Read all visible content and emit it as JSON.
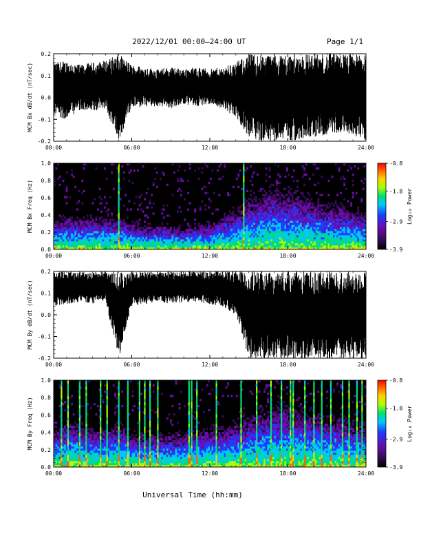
{
  "header": {
    "title": "2022/12/01  00:00–24:00 UT",
    "page": "Page 1/1"
  },
  "x_axis": {
    "title": "Universal Time (hh:mm)",
    "tick_labels": [
      "00:00",
      "06:00",
      "12:00",
      "18:00",
      "24:00"
    ],
    "range_hours": [
      0,
      24
    ]
  },
  "colors": {
    "plot_background": "#000000",
    "trace": "#000000",
    "colorscale": [
      "#000000",
      "#3b0a5c",
      "#6a0dad",
      "#1e3cff",
      "#00c8ff",
      "#00e070",
      "#aaff00",
      "#ffd000",
      "#ff6000",
      "#ff0000"
    ]
  },
  "chart_data": [
    {
      "type": "line",
      "panel": "bx-timeseries",
      "ylabel": "MCM Bx dB/dt (nT/sec)",
      "ylim": [
        -0.2,
        0.2
      ],
      "ytick_labels": [
        "0.2",
        "0.1",
        "0.0",
        "-0.1",
        "-0.2"
      ],
      "xlim": [
        0,
        24
      ],
      "series": [
        {
          "x": [
            0,
            1,
            2,
            3,
            4,
            5,
            6,
            7,
            8,
            9,
            10,
            11,
            12,
            13,
            14,
            15,
            16,
            17,
            18,
            19,
            20,
            21,
            22,
            23,
            24
          ],
          "upper": [
            0.16,
            0.17,
            0.15,
            0.16,
            0.17,
            0.2,
            0.15,
            0.14,
            0.13,
            0.14,
            0.13,
            0.14,
            0.13,
            0.14,
            0.16,
            0.2,
            0.2,
            0.2,
            0.2,
            0.2,
            0.2,
            0.2,
            0.2,
            0.2,
            0.2
          ],
          "lower": [
            -0.08,
            -0.1,
            -0.06,
            -0.07,
            -0.05,
            -0.2,
            -0.05,
            -0.04,
            -0.04,
            -0.05,
            -0.03,
            -0.04,
            -0.03,
            -0.05,
            -0.09,
            -0.18,
            -0.2,
            -0.2,
            -0.2,
            -0.19,
            -0.18,
            -0.17,
            -0.16,
            -0.17,
            -0.2
          ]
        }
      ]
    },
    {
      "type": "heatmap",
      "panel": "bx-spectrogram",
      "ylabel": "MCM Bx Freq (Hz)",
      "ylim": [
        0,
        1
      ],
      "ytick_labels": [
        "1.0",
        "0.8",
        "0.6",
        "0.4",
        "0.2",
        "0.0"
      ],
      "xlim": [
        0,
        24
      ],
      "colorbar": {
        "label": "Log₁₀ Power",
        "range": [
          -3.9,
          -0.8
        ],
        "tick_labels": [
          "-0.8",
          "-1.8",
          "-2.9",
          "-3.9"
        ]
      },
      "noise_top_hz": [
        0.25,
        0.3,
        0.28,
        0.3,
        0.28,
        0.3,
        0.25,
        0.22,
        0.22,
        0.22,
        0.2,
        0.22,
        0.25,
        0.3,
        0.35,
        0.45,
        0.5,
        0.55,
        0.5,
        0.5,
        0.45,
        0.4,
        0.4,
        0.35
      ],
      "broadband_bursts_hours": [
        5.0,
        14.6
      ]
    },
    {
      "type": "line",
      "panel": "by-timeseries",
      "ylabel": "MCM By dB/dt (nT/sec)",
      "ylim": [
        -0.2,
        0.2
      ],
      "ytick_labels": [
        "0.2",
        "0.1",
        "0.0",
        "-0.1",
        "-0.2"
      ],
      "xlim": [
        0,
        24
      ],
      "series": [
        {
          "x": [
            0,
            1,
            2,
            3,
            4,
            5,
            6,
            7,
            8,
            9,
            10,
            11,
            12,
            13,
            14,
            15,
            16,
            17,
            18,
            19,
            20,
            21,
            22,
            23,
            24
          ],
          "upper": [
            0.2,
            0.2,
            0.2,
            0.2,
            0.2,
            0.2,
            0.2,
            0.2,
            0.2,
            0.2,
            0.2,
            0.2,
            0.2,
            0.2,
            0.2,
            0.2,
            0.2,
            0.2,
            0.2,
            0.2,
            0.2,
            0.2,
            0.2,
            0.2,
            0.2
          ],
          "lower": [
            0.04,
            0.05,
            0.06,
            0.05,
            0.06,
            -0.2,
            0.04,
            0.05,
            0.06,
            0.05,
            0.06,
            0.06,
            0.05,
            0.04,
            0.0,
            -0.2,
            -0.2,
            -0.2,
            -0.2,
            -0.2,
            -0.2,
            -0.2,
            -0.2,
            -0.2,
            -0.2
          ]
        }
      ]
    },
    {
      "type": "heatmap",
      "panel": "by-spectrogram",
      "ylabel": "MCM By Freq (Hz)",
      "ylim": [
        0,
        1
      ],
      "ytick_labels": [
        "1.0",
        "0.8",
        "0.6",
        "0.4",
        "0.2",
        "0.0"
      ],
      "xlim": [
        0,
        24
      ],
      "colorbar": {
        "label": "Log₁₀ Power",
        "range": [
          -3.9,
          -0.8
        ],
        "tick_labels": [
          "-0.8",
          "-1.8",
          "-2.9",
          "-3.9"
        ]
      },
      "noise_top_hz": [
        0.35,
        0.4,
        0.4,
        0.35,
        0.35,
        0.4,
        0.3,
        0.3,
        0.3,
        0.3,
        0.3,
        0.35,
        0.35,
        0.35,
        0.4,
        0.45,
        0.5,
        0.55,
        0.55,
        0.5,
        0.5,
        0.45,
        0.45,
        0.4
      ],
      "broadband_bursts_hours": [
        0.6,
        1.1,
        2.0,
        2.5,
        3.6,
        4.1,
        5.0,
        5.7,
        6.6,
        7.0,
        7.4,
        8.0,
        10.4,
        10.6,
        11.0,
        12.5,
        14.4,
        15.6,
        16.7,
        17.5,
        18.2,
        18.4,
        19.3,
        20.0,
        20.6,
        21.3,
        22.2,
        22.7,
        23.3,
        23.7
      ]
    }
  ]
}
